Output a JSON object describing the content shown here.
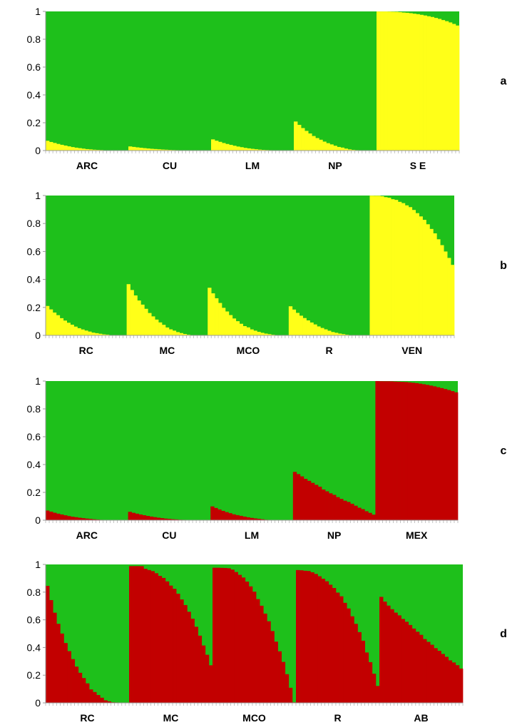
{
  "colors": {
    "green": "#1ec01b",
    "yellow": "#ffff18",
    "red": "#c20000",
    "axis": "#9a9a9a",
    "text": "#000000"
  },
  "chart_data": [
    {
      "type": "bar",
      "panel_label": "a",
      "ylim": [
        0,
        1
      ],
      "yticks": [
        "0",
        "0.2",
        "0.4",
        "0.6",
        "0.8",
        "1"
      ],
      "stacked": true,
      "groups": [
        {
          "label": "ARC",
          "bars": 23,
          "start": 0.07,
          "end": 0.0
        },
        {
          "label": "CU",
          "bars": 23,
          "start": 0.03,
          "end": 0.0
        },
        {
          "label": "LM",
          "bars": 23,
          "start": 0.08,
          "end": 0.0
        },
        {
          "label": "NP",
          "bars": 23,
          "start": 0.21,
          "end": 0.0
        },
        {
          "label": "S E",
          "bars": 23,
          "start": 1.0,
          "end": 0.9
        }
      ],
      "series": [
        {
          "color_key": "yellow",
          "role": "lower"
        },
        {
          "color_key": "green",
          "role": "upper"
        }
      ]
    },
    {
      "type": "bar",
      "panel_label": "b",
      "ylim": [
        0,
        1
      ],
      "yticks": [
        "0",
        "0.2",
        "0.4",
        "0.6",
        "0.8",
        "1"
      ],
      "stacked": true,
      "groups": [
        {
          "label": "RC",
          "bars": 23,
          "start": 0.21,
          "end": 0.0
        },
        {
          "label": "MC",
          "bars": 23,
          "start": 0.37,
          "end": 0.0
        },
        {
          "label": "MCO",
          "bars": 23,
          "start": 0.34,
          "end": 0.0
        },
        {
          "label": "R",
          "bars": 23,
          "start": 0.21,
          "end": 0.0
        },
        {
          "label": "VEN",
          "bars": 24,
          "start": 1.0,
          "end": 0.51
        }
      ],
      "series": [
        {
          "color_key": "yellow",
          "role": "lower"
        },
        {
          "color_key": "green",
          "role": "upper"
        }
      ]
    },
    {
      "type": "bar",
      "panel_label": "c",
      "ylim": [
        0,
        1
      ],
      "yticks": [
        "0",
        "0.2",
        "0.4",
        "0.6",
        "0.8",
        "1"
      ],
      "stacked": true,
      "groups": [
        {
          "label": "ARC",
          "bars": 23,
          "start": 0.07,
          "end": 0.0
        },
        {
          "label": "CU",
          "bars": 23,
          "start": 0.06,
          "end": 0.0
        },
        {
          "label": "LM",
          "bars": 23,
          "start": 0.1,
          "end": 0.0
        },
        {
          "label": "NP",
          "bars": 23,
          "start": 0.35,
          "end": 0.04
        },
        {
          "label": "MEX",
          "bars": 23,
          "start": 1.0,
          "end": 0.92
        }
      ],
      "series": [
        {
          "color_key": "red",
          "role": "lower"
        },
        {
          "color_key": "green",
          "role": "upper"
        }
      ]
    },
    {
      "type": "bar",
      "panel_label": "d",
      "ylim": [
        0,
        1
      ],
      "yticks": [
        "0",
        "0.2",
        "0.4",
        "0.6",
        "0.8",
        "1"
      ],
      "stacked": true,
      "groups": [
        {
          "label": "RC",
          "bars": 23,
          "start": 0.85,
          "end": 0.0
        },
        {
          "label": "MC",
          "bars": 23,
          "start": 0.99,
          "end": 0.28
        },
        {
          "label": "MCO",
          "bars": 23,
          "start": 0.99,
          "end": 0.0
        },
        {
          "label": "R",
          "bars": 23,
          "start": 0.96,
          "end": 0.13
        },
        {
          "label": "AB",
          "bars": 23,
          "start": 0.77,
          "end": 0.25
        }
      ],
      "series": [
        {
          "color_key": "red",
          "role": "lower"
        },
        {
          "color_key": "green",
          "role": "upper"
        }
      ]
    }
  ]
}
